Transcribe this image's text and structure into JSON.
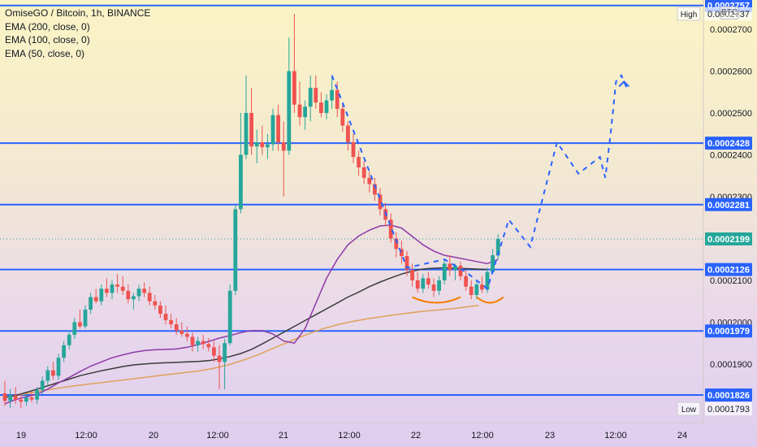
{
  "header": {
    "title": "OmiseGO / Bitcoin, 1h, BINANCE",
    "indicators": [
      "EMA (200, close, 0)",
      "EMA (100, close, 0)",
      "EMA (50, close, 0)"
    ],
    "currency": "BTC"
  },
  "colors": {
    "up": "#26a69a",
    "down": "#ef5350",
    "level_line": "#2962ff",
    "ema50": "#8e3aa8",
    "ema100": "#3b3b3b",
    "ema200": "#e0a15a",
    "projection": "#2962ff",
    "annotation": "#f57c00",
    "current_price": "#26a69a"
  },
  "chart_data": {
    "type": "candlestick",
    "symbol": "OmiseGO / Bitcoin",
    "interval": "1h",
    "exchange": "BINANCE",
    "y_axis": {
      "ticks": [
        "0.0002700",
        "0.0002600",
        "0.0002500",
        "0.0002400",
        "0.0002300",
        "0.0002100",
        "0.0002000",
        "0.0001900"
      ],
      "range": [
        0.000176,
        0.000277
      ]
    },
    "x_axis": {
      "ticks": [
        "19",
        "12:00",
        "20",
        "12:00",
        "21",
        "12:00",
        "22",
        "12:00",
        "23",
        "12:00",
        "24"
      ]
    },
    "horizontal_levels": [
      {
        "label": "0.0002757",
        "value": 0.0002757
      },
      {
        "label": "0.0002428",
        "value": 0.0002428
      },
      {
        "label": "0.0002281",
        "value": 0.0002281
      },
      {
        "label": "0.0002126",
        "value": 0.0002126
      },
      {
        "label": "0.0001979",
        "value": 0.0001979
      },
      {
        "label": "0.0001826",
        "value": 0.0001826
      }
    ],
    "high": {
      "label": "High",
      "value_label": "0.0002737",
      "value": 0.0002737
    },
    "low": {
      "label": "Low",
      "value_label": "0.0001793",
      "value": 0.0001793
    },
    "current_price": {
      "label": "0.0002199",
      "value": 0.0002199
    },
    "candles": [
      {
        "t": 0,
        "o": 0.000183,
        "h": 0.000186,
        "l": 0.00018,
        "c": 0.0001812
      },
      {
        "t": 1,
        "o": 0.0001812,
        "h": 0.000184,
        "l": 0.0001795,
        "c": 0.0001825
      },
      {
        "t": 2,
        "o": 0.0001825,
        "h": 0.0001845,
        "l": 0.0001805,
        "c": 0.0001815
      },
      {
        "t": 3,
        "o": 0.0001815,
        "h": 0.000183,
        "l": 0.0001795,
        "c": 0.000181
      },
      {
        "t": 4,
        "o": 0.000181,
        "h": 0.0001828,
        "l": 0.00018,
        "c": 0.000182
      },
      {
        "t": 5,
        "o": 0.000182,
        "h": 0.0001835,
        "l": 0.0001808,
        "c": 0.0001815
      },
      {
        "t": 6,
        "o": 0.0001815,
        "h": 0.0001845,
        "l": 0.0001805,
        "c": 0.0001838
      },
      {
        "t": 7,
        "o": 0.0001838,
        "h": 0.000187,
        "l": 0.0001828,
        "c": 0.000186
      },
      {
        "t": 8,
        "o": 0.000186,
        "h": 0.0001895,
        "l": 0.000185,
        "c": 0.0001885
      },
      {
        "t": 9,
        "o": 0.0001885,
        "h": 0.0001905,
        "l": 0.0001862,
        "c": 0.0001872
      },
      {
        "t": 10,
        "o": 0.0001872,
        "h": 0.0001925,
        "l": 0.0001862,
        "c": 0.0001915
      },
      {
        "t": 11,
        "o": 0.0001915,
        "h": 0.0001955,
        "l": 0.0001905,
        "c": 0.0001945
      },
      {
        "t": 12,
        "o": 0.0001945,
        "h": 0.000198,
        "l": 0.0001935,
        "c": 0.000197
      },
      {
        "t": 13,
        "o": 0.000197,
        "h": 0.000201,
        "l": 0.000196,
        "c": 0.0002
      },
      {
        "t": 14,
        "o": 0.0002,
        "h": 0.000203,
        "l": 0.0001985,
        "c": 0.000199
      },
      {
        "t": 15,
        "o": 0.000199,
        "h": 0.000204,
        "l": 0.0001985,
        "c": 0.000203
      },
      {
        "t": 16,
        "o": 0.000203,
        "h": 0.000207,
        "l": 0.000202,
        "c": 0.000206
      },
      {
        "t": 17,
        "o": 0.000206,
        "h": 0.000208,
        "l": 0.0002045,
        "c": 0.000205
      },
      {
        "t": 18,
        "o": 0.000205,
        "h": 0.000209,
        "l": 0.000204,
        "c": 0.000208
      },
      {
        "t": 19,
        "o": 0.000208,
        "h": 0.0002105,
        "l": 0.000206,
        "c": 0.000207
      },
      {
        "t": 20,
        "o": 0.000207,
        "h": 0.00021,
        "l": 0.0002055,
        "c": 0.000209
      },
      {
        "t": 21,
        "o": 0.000209,
        "h": 0.0002115,
        "l": 0.000207,
        "c": 0.0002085
      },
      {
        "t": 22,
        "o": 0.0002085,
        "h": 0.000211,
        "l": 0.0002065,
        "c": 0.0002075
      },
      {
        "t": 23,
        "o": 0.0002075,
        "h": 0.000209,
        "l": 0.0002045,
        "c": 0.0002055
      },
      {
        "t": 24,
        "o": 0.0002055,
        "h": 0.000207,
        "l": 0.000203,
        "c": 0.0002062
      },
      {
        "t": 25,
        "o": 0.0002062,
        "h": 0.000209,
        "l": 0.000205,
        "c": 0.000208
      },
      {
        "t": 26,
        "o": 0.000208,
        "h": 0.0002095,
        "l": 0.000206,
        "c": 0.000207
      },
      {
        "t": 27,
        "o": 0.000207,
        "h": 0.0002085,
        "l": 0.000204,
        "c": 0.000205
      },
      {
        "t": 28,
        "o": 0.000205,
        "h": 0.0002065,
        "l": 0.000203,
        "c": 0.000204
      },
      {
        "t": 29,
        "o": 0.000204,
        "h": 0.000205,
        "l": 0.000201,
        "c": 0.000202
      },
      {
        "t": 30,
        "o": 0.000202,
        "h": 0.000204,
        "l": 0.0001995,
        "c": 0.0002005
      },
      {
        "t": 31,
        "o": 0.0002005,
        "h": 0.000202,
        "l": 0.0001985,
        "c": 0.0001995
      },
      {
        "t": 32,
        "o": 0.0001995,
        "h": 0.000201,
        "l": 0.000197,
        "c": 0.000198
      },
      {
        "t": 33,
        "o": 0.000198,
        "h": 0.0002,
        "l": 0.0001965,
        "c": 0.0001972
      },
      {
        "t": 34,
        "o": 0.0001972,
        "h": 0.000199,
        "l": 0.0001955,
        "c": 0.0001965
      },
      {
        "t": 35,
        "o": 0.0001965,
        "h": 0.0001975,
        "l": 0.000193,
        "c": 0.0001945
      },
      {
        "t": 36,
        "o": 0.0001945,
        "h": 0.0001965,
        "l": 0.000193,
        "c": 0.0001955
      },
      {
        "t": 37,
        "o": 0.0001955,
        "h": 0.000197,
        "l": 0.0001935,
        "c": 0.0001948
      },
      {
        "t": 38,
        "o": 0.0001948,
        "h": 0.0001962,
        "l": 0.000193,
        "c": 0.000194
      },
      {
        "t": 39,
        "o": 0.000194,
        "h": 0.0001955,
        "l": 0.0001905,
        "c": 0.000192
      },
      {
        "t": 40,
        "o": 0.000192,
        "h": 0.0001945,
        "l": 0.000184,
        "c": 0.0001905
      },
      {
        "t": 41,
        "o": 0.0001905,
        "h": 0.000196,
        "l": 0.000184,
        "c": 0.000195
      },
      {
        "t": 42,
        "o": 0.000195,
        "h": 0.000209,
        "l": 0.0001945,
        "c": 0.0002075
      },
      {
        "t": 43,
        "o": 0.0002075,
        "h": 0.000228,
        "l": 0.0002065,
        "c": 0.000227
      },
      {
        "t": 44,
        "o": 0.000227,
        "h": 0.00025,
        "l": 0.000226,
        "c": 0.00024
      },
      {
        "t": 45,
        "o": 0.00024,
        "h": 0.000259,
        "l": 0.000239,
        "c": 0.00025
      },
      {
        "t": 46,
        "o": 0.00025,
        "h": 0.000256,
        "l": 0.00024,
        "c": 0.000242
      },
      {
        "t": 47,
        "o": 0.000242,
        "h": 0.000246,
        "l": 0.000238,
        "c": 0.000243
      },
      {
        "t": 48,
        "o": 0.000243,
        "h": 0.000247,
        "l": 0.00024,
        "c": 0.0002418
      },
      {
        "t": 49,
        "o": 0.0002418,
        "h": 0.000245,
        "l": 0.000239,
        "c": 0.0002425
      },
      {
        "t": 50,
        "o": 0.0002425,
        "h": 0.000251,
        "l": 0.000241,
        "c": 0.0002495
      },
      {
        "t": 51,
        "o": 0.0002495,
        "h": 0.000252,
        "l": 0.000241,
        "c": 0.000243
      },
      {
        "t": 52,
        "o": 0.000243,
        "h": 0.000248,
        "l": 0.00023,
        "c": 0.000241
      },
      {
        "t": 53,
        "o": 0.000241,
        "h": 0.000268,
        "l": 0.00024,
        "c": 0.00026
      },
      {
        "t": 54,
        "o": 0.00026,
        "h": 0.0002737,
        "l": 0.00025,
        "c": 0.000252
      },
      {
        "t": 55,
        "o": 0.000252,
        "h": 0.0002575,
        "l": 0.000247,
        "c": 0.000249
      },
      {
        "t": 56,
        "o": 0.000249,
        "h": 0.000253,
        "l": 0.000246,
        "c": 0.0002515
      },
      {
        "t": 57,
        "o": 0.0002515,
        "h": 0.000259,
        "l": 0.000248,
        "c": 0.000256
      },
      {
        "t": 58,
        "o": 0.000256,
        "h": 0.000259,
        "l": 0.000251,
        "c": 0.0002525
      },
      {
        "t": 59,
        "o": 0.0002525,
        "h": 0.000255,
        "l": 0.000249,
        "c": 0.00025
      },
      {
        "t": 60,
        "o": 0.00025,
        "h": 0.0002545,
        "l": 0.0002485,
        "c": 0.000253
      },
      {
        "t": 61,
        "o": 0.000253,
        "h": 0.0002585,
        "l": 0.000251,
        "c": 0.0002555
      },
      {
        "t": 62,
        "o": 0.0002555,
        "h": 0.0002575,
        "l": 0.000249,
        "c": 0.000251
      },
      {
        "t": 63,
        "o": 0.000251,
        "h": 0.0002525,
        "l": 0.0002455,
        "c": 0.000247
      },
      {
        "t": 64,
        "o": 0.000247,
        "h": 0.000248,
        "l": 0.000241,
        "c": 0.000243
      },
      {
        "t": 65,
        "o": 0.000243,
        "h": 0.000245,
        "l": 0.000238,
        "c": 0.0002395
      },
      {
        "t": 66,
        "o": 0.0002395,
        "h": 0.000241,
        "l": 0.000235,
        "c": 0.000237
      },
      {
        "t": 67,
        "o": 0.000237,
        "h": 0.0002385,
        "l": 0.000233,
        "c": 0.0002345
      },
      {
        "t": 68,
        "o": 0.0002345,
        "h": 0.000236,
        "l": 0.000231,
        "c": 0.000233
      },
      {
        "t": 69,
        "o": 0.000233,
        "h": 0.0002345,
        "l": 0.000229,
        "c": 0.0002305
      },
      {
        "t": 70,
        "o": 0.0002305,
        "h": 0.000232,
        "l": 0.0002255,
        "c": 0.000227
      },
      {
        "t": 71,
        "o": 0.000227,
        "h": 0.0002285,
        "l": 0.000223,
        "c": 0.0002245
      },
      {
        "t": 72,
        "o": 0.0002245,
        "h": 0.000226,
        "l": 0.000219,
        "c": 0.00022
      },
      {
        "t": 73,
        "o": 0.00022,
        "h": 0.0002215,
        "l": 0.0002155,
        "c": 0.0002175
      },
      {
        "t": 74,
        "o": 0.0002175,
        "h": 0.0002195,
        "l": 0.000214,
        "c": 0.0002158
      },
      {
        "t": 75,
        "o": 0.0002158,
        "h": 0.000217,
        "l": 0.000211,
        "c": 0.0002125
      },
      {
        "t": 76,
        "o": 0.0002125,
        "h": 0.000214,
        "l": 0.0002085,
        "c": 0.00021
      },
      {
        "t": 77,
        "o": 0.00021,
        "h": 0.000212,
        "l": 0.000207,
        "c": 0.000208
      },
      {
        "t": 78,
        "o": 0.000208,
        "h": 0.0002115,
        "l": 0.000207,
        "c": 0.0002105
      },
      {
        "t": 79,
        "o": 0.0002105,
        "h": 0.000212,
        "l": 0.000208,
        "c": 0.000209
      },
      {
        "t": 80,
        "o": 0.000209,
        "h": 0.0002105,
        "l": 0.000206,
        "c": 0.0002075
      },
      {
        "t": 81,
        "o": 0.0002075,
        "h": 0.000211,
        "l": 0.0002065,
        "c": 0.00021
      },
      {
        "t": 82,
        "o": 0.00021,
        "h": 0.000215,
        "l": 0.000209,
        "c": 0.000214
      },
      {
        "t": 83,
        "o": 0.000214,
        "h": 0.000216,
        "l": 0.000211,
        "c": 0.0002125
      },
      {
        "t": 84,
        "o": 0.0002125,
        "h": 0.000214,
        "l": 0.00021,
        "c": 0.0002135
      },
      {
        "t": 85,
        "o": 0.0002135,
        "h": 0.0002145,
        "l": 0.00021,
        "c": 0.000211
      },
      {
        "t": 86,
        "o": 0.000211,
        "h": 0.0002125,
        "l": 0.0002075,
        "c": 0.0002085
      },
      {
        "t": 87,
        "o": 0.0002085,
        "h": 0.00021,
        "l": 0.0002055,
        "c": 0.0002065
      },
      {
        "t": 88,
        "o": 0.0002065,
        "h": 0.00021,
        "l": 0.0002055,
        "c": 0.000209
      },
      {
        "t": 89,
        "o": 0.000209,
        "h": 0.000211,
        "l": 0.000207,
        "c": 0.0002078
      },
      {
        "t": 90,
        "o": 0.0002078,
        "h": 0.000213,
        "l": 0.000207,
        "c": 0.000212
      },
      {
        "t": 91,
        "o": 0.000212,
        "h": 0.0002175,
        "l": 0.0002115,
        "c": 0.000216
      },
      {
        "t": 92,
        "o": 0.000216,
        "h": 0.000221,
        "l": 0.000215,
        "c": 0.0002199
      }
    ],
    "ema_50": [
      0.0001805,
      0.0001815,
      0.0001822,
      0.0001828,
      0.000184,
      0.0001855,
      0.0001868,
      0.0001882,
      0.0001895,
      0.0001905,
      0.0001915,
      0.0001922,
      0.0001928,
      0.0001932,
      0.0001934,
      0.0001935,
      0.0001936,
      0.000194,
      0.0001946,
      0.0001954,
      0.0001962,
      0.0001968,
      0.0001975,
      0.000198,
      0.000198,
      0.0001972,
      0.0001955,
      0.000195,
      0.0001985,
      0.0002045,
      0.0002105,
      0.000215,
      0.0002185,
      0.0002206,
      0.000222,
      0.000223,
      0.0002232,
      0.0002225,
      0.0002205,
      0.0002185,
      0.000217,
      0.000216,
      0.0002155,
      0.000215,
      0.0002145,
      0.000214,
      0.000215
    ],
    "ema_100": [
      0.000182,
      0.0001825,
      0.0001832,
      0.000184,
      0.0001848,
      0.0001856,
      0.0001864,
      0.0001872,
      0.0001878,
      0.0001884,
      0.0001889,
      0.0001894,
      0.0001898,
      0.00019,
      0.0001902,
      0.0001903,
      0.0001904,
      0.0001905,
      0.0001906,
      0.0001908,
      0.0001912,
      0.0001918,
      0.0001925,
      0.0001935,
      0.0001948,
      0.0001962,
      0.0001976,
      0.000199,
      0.0002004,
      0.0002018,
      0.0002032,
      0.0002046,
      0.000206,
      0.0002072,
      0.0002085,
      0.0002096,
      0.0002106,
      0.0002115,
      0.0002122,
      0.0002127,
      0.0002129,
      0.000213,
      0.0002129,
      0.0002128,
      0.0002127,
      0.0002126
    ],
    "ema_200": [
      0.0001822,
      0.0001826,
      0.0001832,
      0.0001838,
      0.0001843,
      0.0001848,
      0.0001852,
      0.0001856,
      0.000186,
      0.0001864,
      0.0001868,
      0.0001872,
      0.0001876,
      0.000188,
      0.0001884,
      0.000189,
      0.0001898,
      0.0001908,
      0.000192,
      0.0001934,
      0.0001948,
      0.0001962,
      0.0001975,
      0.0001986,
      0.0001995,
      0.0002002,
      0.0002008,
      0.0002013,
      0.0002018,
      0.0002022,
      0.0002026,
      0.0002029,
      0.0002032,
      0.0002036,
      0.000204
    ]
  }
}
